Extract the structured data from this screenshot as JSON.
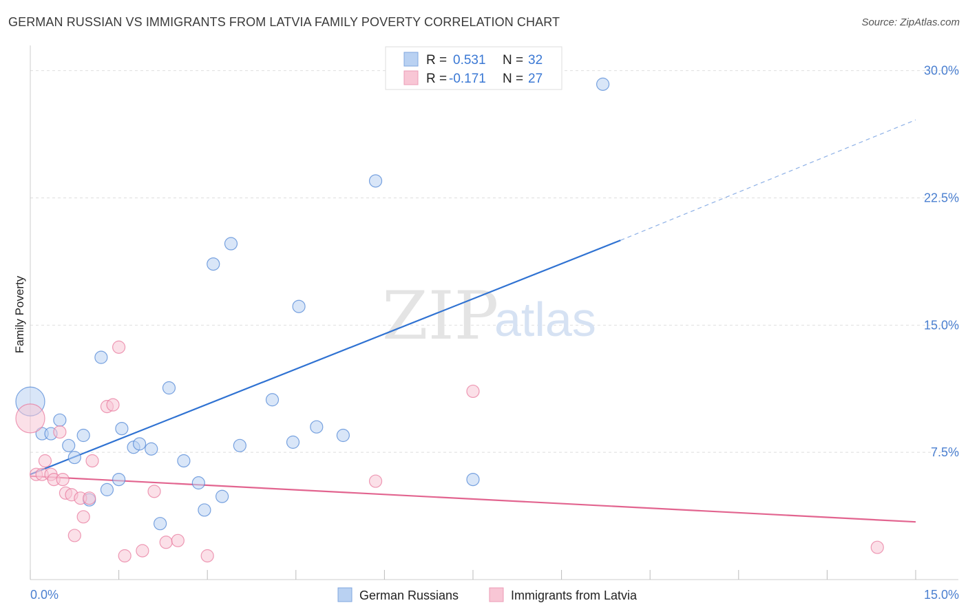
{
  "title": "GERMAN RUSSIAN VS IMMIGRANTS FROM LATVIA FAMILY POVERTY CORRELATION CHART",
  "source": "Source: ZipAtlas.com",
  "watermark": {
    "zip": "ZIP",
    "atlas": "atlas"
  },
  "legend": {
    "rows": [
      {
        "r_label": "R =",
        "r_value": "0.531",
        "n_label": "N =",
        "n_value": "32",
        "color": "#a9c6f0"
      },
      {
        "r_label": "R =",
        "r_value": "-0.171",
        "n_label": "N =",
        "n_value": "27",
        "color": "#f6b9cc"
      }
    ]
  },
  "bottom_legend": [
    {
      "label": "German Russians",
      "color": "#a9c6f0"
    },
    {
      "label": "Immigrants from Latvia",
      "color": "#f6b9cc"
    }
  ],
  "chart_data": {
    "type": "scatter",
    "title": "GERMAN RUSSIAN VS IMMIGRANTS FROM LATVIA FAMILY POVERTY CORRELATION CHART",
    "xlabel": "",
    "ylabel": "Family Poverty",
    "xlim": [
      0,
      15
    ],
    "ylim": [
      0,
      31
    ],
    "x_tick_labels": [
      "0.0%",
      "15.0%"
    ],
    "y_ticks": [
      7.5,
      15.0,
      22.5,
      30.0
    ],
    "y_tick_labels": [
      "7.5%",
      "15.0%",
      "22.5%",
      "30.0%"
    ],
    "grid": true,
    "series": [
      {
        "name": "German Russians",
        "color": "#4f86d6",
        "fill": "#b9d1f2",
        "points": [
          {
            "x": 0.0,
            "y": 10.5,
            "big": true
          },
          {
            "x": 0.2,
            "y": 8.6
          },
          {
            "x": 0.35,
            "y": 8.6
          },
          {
            "x": 0.5,
            "y": 9.4
          },
          {
            "x": 0.65,
            "y": 7.9
          },
          {
            "x": 0.75,
            "y": 7.2
          },
          {
            "x": 0.9,
            "y": 8.5
          },
          {
            "x": 1.0,
            "y": 4.7
          },
          {
            "x": 1.2,
            "y": 13.1
          },
          {
            "x": 1.3,
            "y": 5.3
          },
          {
            "x": 1.5,
            "y": 5.9
          },
          {
            "x": 1.55,
            "y": 8.9
          },
          {
            "x": 1.75,
            "y": 7.8
          },
          {
            "x": 1.85,
            "y": 8.0
          },
          {
            "x": 2.05,
            "y": 7.7
          },
          {
            "x": 2.2,
            "y": 3.3
          },
          {
            "x": 2.35,
            "y": 11.3
          },
          {
            "x": 2.6,
            "y": 7.0
          },
          {
            "x": 2.85,
            "y": 5.7
          },
          {
            "x": 2.95,
            "y": 4.1
          },
          {
            "x": 3.1,
            "y": 18.6
          },
          {
            "x": 3.25,
            "y": 4.9
          },
          {
            "x": 3.4,
            "y": 19.8
          },
          {
            "x": 3.55,
            "y": 7.9
          },
          {
            "x": 4.1,
            "y": 10.6
          },
          {
            "x": 4.45,
            "y": 8.1
          },
          {
            "x": 4.55,
            "y": 16.1
          },
          {
            "x": 4.85,
            "y": 9.0
          },
          {
            "x": 5.3,
            "y": 8.5
          },
          {
            "x": 5.85,
            "y": 23.5
          },
          {
            "x": 7.5,
            "y": 5.9
          },
          {
            "x": 9.7,
            "y": 29.2
          }
        ],
        "trend": {
          "x0": 0.0,
          "y0": 6.2,
          "x1": 10.0,
          "y1": 20.0,
          "x_dash_end": 15.0,
          "y_dash_end": 27.1
        }
      },
      {
        "name": "Immigrants from Latvia",
        "color": "#e8799e",
        "fill": "#f8c6d5",
        "points": [
          {
            "x": 0.0,
            "y": 9.5,
            "big": true
          },
          {
            "x": 0.1,
            "y": 6.2
          },
          {
            "x": 0.2,
            "y": 6.2
          },
          {
            "x": 0.25,
            "y": 7.0
          },
          {
            "x": 0.35,
            "y": 6.2
          },
          {
            "x": 0.4,
            "y": 5.9
          },
          {
            "x": 0.5,
            "y": 8.7
          },
          {
            "x": 0.55,
            "y": 5.9
          },
          {
            "x": 0.6,
            "y": 5.1
          },
          {
            "x": 0.7,
            "y": 5.0
          },
          {
            "x": 0.75,
            "y": 2.6
          },
          {
            "x": 0.85,
            "y": 4.8
          },
          {
            "x": 0.9,
            "y": 3.7
          },
          {
            "x": 1.0,
            "y": 4.8
          },
          {
            "x": 1.05,
            "y": 7.0
          },
          {
            "x": 1.3,
            "y": 10.2
          },
          {
            "x": 1.4,
            "y": 10.3
          },
          {
            "x": 1.5,
            "y": 13.7
          },
          {
            "x": 1.6,
            "y": 1.4
          },
          {
            "x": 1.9,
            "y": 1.7
          },
          {
            "x": 2.1,
            "y": 5.2
          },
          {
            "x": 2.3,
            "y": 2.2
          },
          {
            "x": 2.5,
            "y": 2.3
          },
          {
            "x": 3.0,
            "y": 1.4
          },
          {
            "x": 5.85,
            "y": 5.8
          },
          {
            "x": 7.5,
            "y": 11.1
          },
          {
            "x": 14.35,
            "y": 1.9
          }
        ],
        "trend": {
          "x0": 0.0,
          "y0": 6.1,
          "x1": 15.0,
          "y1": 3.4
        }
      }
    ]
  }
}
